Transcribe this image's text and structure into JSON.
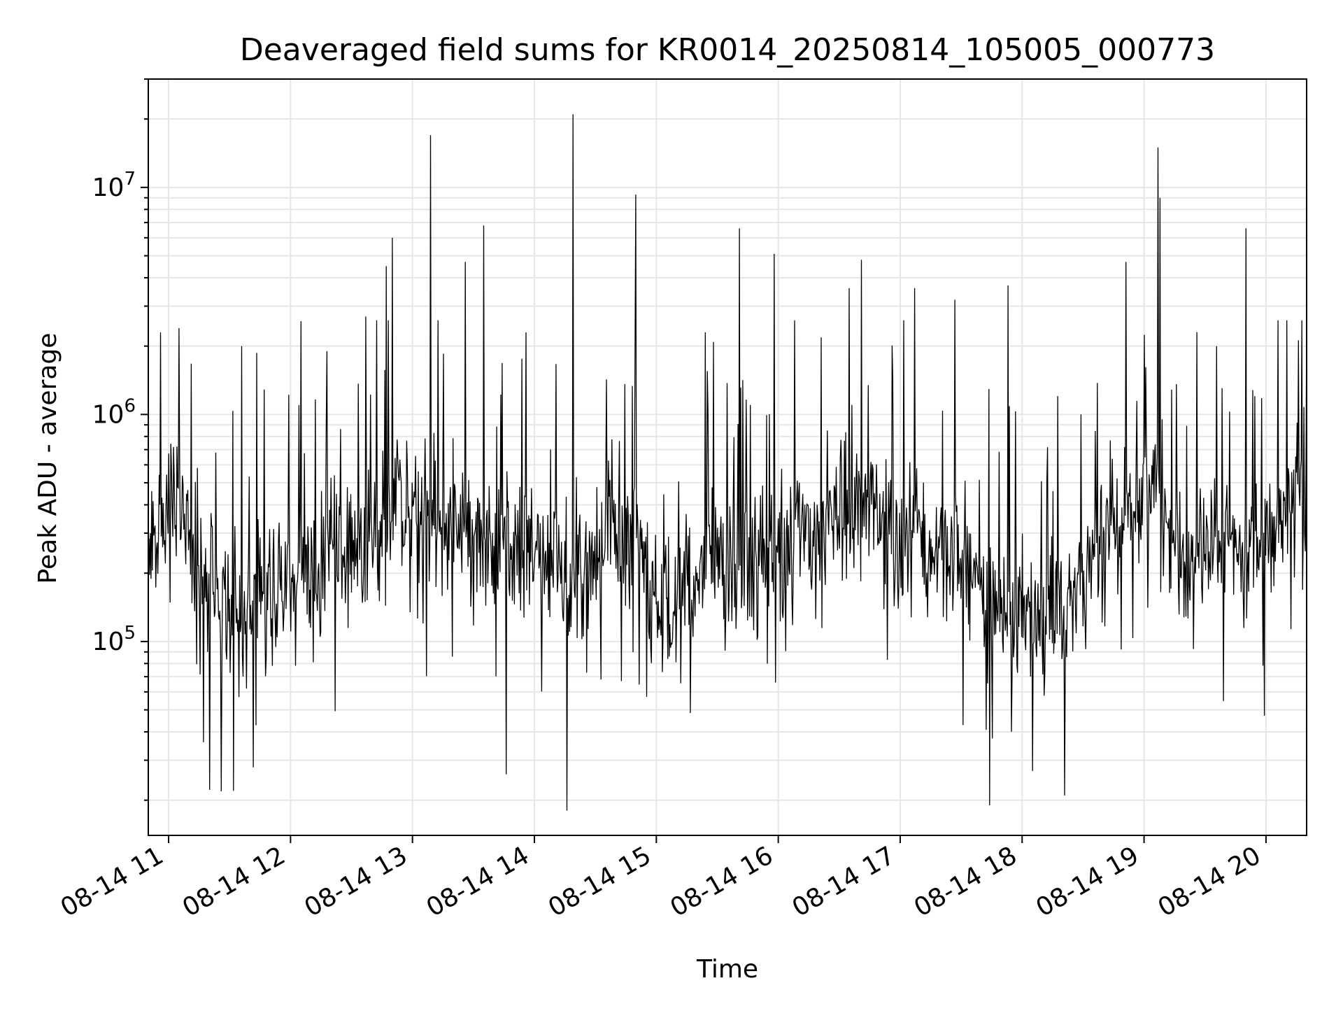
{
  "chart_data": {
    "type": "line",
    "title": "Deaveraged field sums for KR0014_20250814_105005_000773",
    "xlabel": "Time",
    "ylabel": "Peak ADU - average",
    "xscale": "time",
    "yscale": "log",
    "xlim": [
      "2025-08-14 10:50",
      "2025-08-14 20:20"
    ],
    "ylim": [
      14000,
      30000000
    ],
    "grid": true,
    "line_color": "#000000",
    "grid_color": "#e6e6e6",
    "x_ticks": [
      {
        "value": "2025-08-14 11:00",
        "label": "08-14 11"
      },
      {
        "value": "2025-08-14 12:00",
        "label": "08-14 12"
      },
      {
        "value": "2025-08-14 13:00",
        "label": "08-14 13"
      },
      {
        "value": "2025-08-14 14:00",
        "label": "08-14 14"
      },
      {
        "value": "2025-08-14 15:00",
        "label": "08-14 15"
      },
      {
        "value": "2025-08-14 16:00",
        "label": "08-14 16"
      },
      {
        "value": "2025-08-14 17:00",
        "label": "08-14 17"
      },
      {
        "value": "2025-08-14 18:00",
        "label": "08-14 18"
      },
      {
        "value": "2025-08-14 19:00",
        "label": "08-14 19"
      },
      {
        "value": "2025-08-14 20:00",
        "label": "08-14 20"
      }
    ],
    "y_ticks": [
      {
        "value": 100000,
        "base": "10",
        "exp": "5"
      },
      {
        "value": 1000000,
        "base": "10",
        "exp": "6"
      },
      {
        "value": 10000000,
        "base": "10",
        "exp": "7"
      }
    ],
    "series": [
      {
        "x": [
          "2025-08-14 10:50",
          "2025-08-14 11:00",
          "2025-08-14 11:10",
          "2025-08-14 11:20",
          "2025-08-14 11:30",
          "2025-08-14 11:40",
          "2025-08-14 11:50",
          "2025-08-14 12:00",
          "2025-08-14 12:10",
          "2025-08-14 12:20",
          "2025-08-14 12:30",
          "2025-08-14 12:40",
          "2025-08-14 12:50",
          "2025-08-14 13:00",
          "2025-08-14 13:10",
          "2025-08-14 13:20",
          "2025-08-14 13:30",
          "2025-08-14 13:40",
          "2025-08-14 13:50",
          "2025-08-14 14:00",
          "2025-08-14 14:10",
          "2025-08-14 14:20",
          "2025-08-14 14:30",
          "2025-08-14 14:40",
          "2025-08-14 14:50",
          "2025-08-14 15:00",
          "2025-08-14 15:10",
          "2025-08-14 15:20",
          "2025-08-14 15:30",
          "2025-08-14 15:40",
          "2025-08-14 15:50",
          "2025-08-14 16:00",
          "2025-08-14 16:10",
          "2025-08-14 16:20",
          "2025-08-14 16:30",
          "2025-08-14 16:40",
          "2025-08-14 16:50",
          "2025-08-14 17:00",
          "2025-08-14 17:10",
          "2025-08-14 17:20",
          "2025-08-14 17:30",
          "2025-08-14 17:40",
          "2025-08-14 17:50",
          "2025-08-14 18:00",
          "2025-08-14 18:10",
          "2025-08-14 18:20",
          "2025-08-14 18:30",
          "2025-08-14 18:40",
          "2025-08-14 18:50",
          "2025-08-14 19:00",
          "2025-08-14 19:10",
          "2025-08-14 19:20",
          "2025-08-14 19:30",
          "2025-08-14 19:40",
          "2025-08-14 19:50",
          "2025-08-14 20:00",
          "2025-08-14 20:10",
          "2025-08-14 20:20"
        ],
        "y": [
          250000,
          400000,
          300000,
          150000,
          120000,
          150000,
          170000,
          190000,
          200000,
          230000,
          260000,
          300000,
          380000,
          400000,
          320000,
          300000,
          280000,
          250000,
          220000,
          250000,
          210000,
          180000,
          230000,
          320000,
          250000,
          150000,
          140000,
          200000,
          260000,
          180000,
          180000,
          250000,
          300000,
          320000,
          350000,
          380000,
          320000,
          300000,
          260000,
          250000,
          270000,
          150000,
          140000,
          130000,
          130000,
          150000,
          180000,
          260000,
          400000,
          450000,
          350000,
          230000,
          250000,
          280000,
          260000,
          300000,
          400000,
          450000
        ]
      }
    ],
    "spikes": [
      {
        "x": "2025-08-14 10:56",
        "y": 2300000
      },
      {
        "x": "2025-08-14 11:05",
        "y": 2400000
      },
      {
        "x": "2025-08-14 11:28",
        "y": 250000
      },
      {
        "x": "2025-08-14 11:32",
        "y": 22000
      },
      {
        "x": "2025-08-14 11:36",
        "y": 2000000
      },
      {
        "x": "2025-08-14 12:04",
        "y": 1100000
      },
      {
        "x": "2025-08-14 12:18",
        "y": 1900000
      },
      {
        "x": "2025-08-14 12:37",
        "y": 2700000
      },
      {
        "x": "2025-08-14 12:47",
        "y": 4500000
      },
      {
        "x": "2025-08-14 12:50",
        "y": 6000000
      },
      {
        "x": "2025-08-14 13:09",
        "y": 17000000
      },
      {
        "x": "2025-08-14 13:26",
        "y": 4700000
      },
      {
        "x": "2025-08-14 13:35",
        "y": 6800000
      },
      {
        "x": "2025-08-14 13:46",
        "y": 26000
      },
      {
        "x": "2025-08-14 13:56",
        "y": 2300000
      },
      {
        "x": "2025-08-14 14:16",
        "y": 18000
      },
      {
        "x": "2025-08-14 14:19",
        "y": 21000000
      },
      {
        "x": "2025-08-14 14:50",
        "y": 9300000
      },
      {
        "x": "2025-08-14 15:24",
        "y": 2300000
      },
      {
        "x": "2025-08-14 15:41",
        "y": 6600000
      },
      {
        "x": "2025-08-14 15:58",
        "y": 5100000
      },
      {
        "x": "2025-08-14 16:35",
        "y": 3600000
      },
      {
        "x": "2025-08-14 16:41",
        "y": 4800000
      },
      {
        "x": "2025-08-14 17:07",
        "y": 3600000
      },
      {
        "x": "2025-08-14 17:27",
        "y": 3200000
      },
      {
        "x": "2025-08-14 17:44",
        "y": 19000
      },
      {
        "x": "2025-08-14 17:53",
        "y": 3700000
      },
      {
        "x": "2025-08-14 18:21",
        "y": 21000
      },
      {
        "x": "2025-08-14 18:51",
        "y": 4700000
      },
      {
        "x": "2025-08-14 19:07",
        "y": 15000000
      },
      {
        "x": "2025-08-14 19:08",
        "y": 9000000
      },
      {
        "x": "2025-08-14 19:50",
        "y": 6600000
      },
      {
        "x": "2025-08-14 20:20",
        "y": 2900000
      }
    ]
  }
}
